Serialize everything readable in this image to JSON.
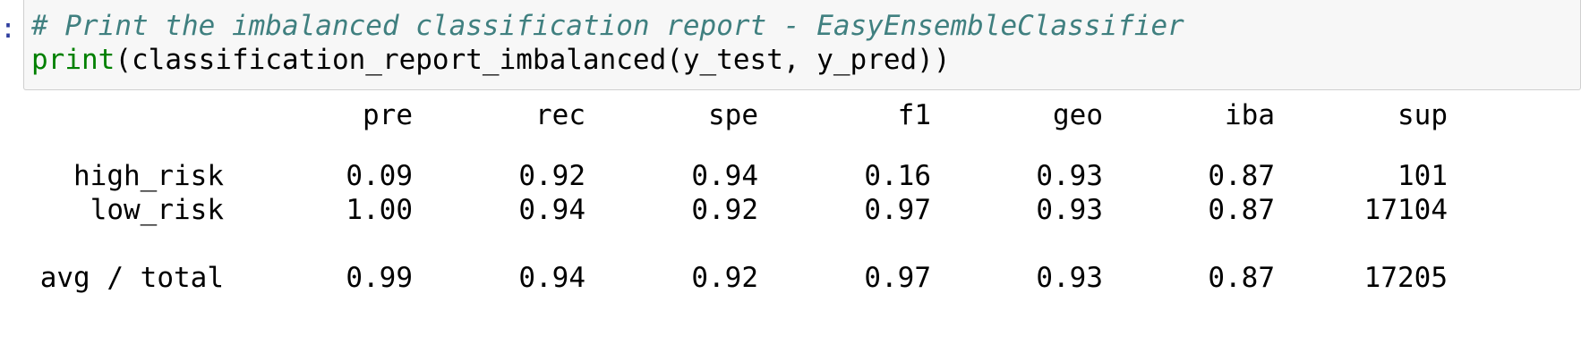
{
  "prompt": ":",
  "code": {
    "comment": "# Print the imbalanced classification report - EasyEnsembleClassifier",
    "func": "print",
    "rest": "(classification_report_imbalanced(y_test, y_pred))"
  },
  "report": {
    "headers": [
      "pre",
      "rec",
      "spe",
      "f1",
      "geo",
      "iba",
      "sup"
    ],
    "rows": [
      {
        "label": "high_risk",
        "values": [
          "0.09",
          "0.92",
          "0.94",
          "0.16",
          "0.93",
          "0.87",
          "101"
        ]
      },
      {
        "label": "low_risk",
        "values": [
          "1.00",
          "0.94",
          "0.92",
          "0.97",
          "0.93",
          "0.87",
          "17104"
        ]
      }
    ],
    "total": {
      "label": "avg / total",
      "values": [
        "0.99",
        "0.94",
        "0.92",
        "0.97",
        "0.93",
        "0.87",
        "17205"
      ]
    }
  }
}
